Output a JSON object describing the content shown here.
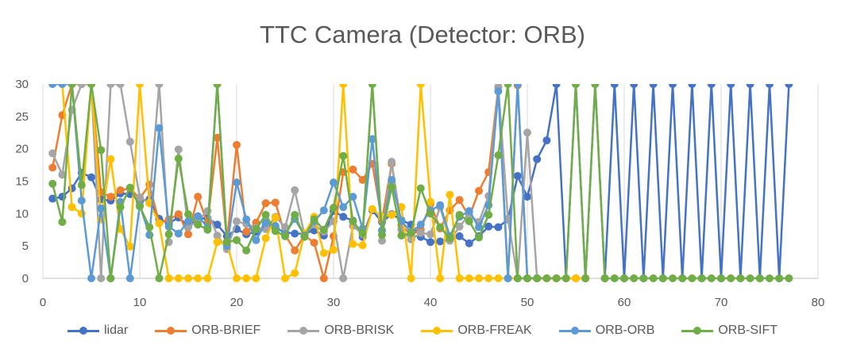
{
  "chart_data": {
    "type": "line",
    "title": "TTC Camera (Detector: ORB)",
    "xlabel": "",
    "ylabel": "",
    "xlim": [
      0,
      80
    ],
    "ylim": [
      0,
      30
    ],
    "xticks": [
      0,
      10,
      20,
      30,
      40,
      50,
      60,
      70,
      80
    ],
    "yticks": [
      0,
      5,
      10,
      15,
      20,
      25,
      30
    ],
    "grid": "vertical gridlines",
    "legend": "bottom",
    "series": [
      {
        "name": "lidar",
        "color": "#4472C4",
        "x": [
          1,
          2,
          3,
          4,
          5,
          6,
          7,
          8,
          9,
          10,
          11,
          12,
          13,
          14,
          15,
          16,
          17,
          18,
          19,
          20,
          21,
          22,
          23,
          24,
          25,
          26,
          27,
          28,
          29,
          30,
          31,
          32,
          33,
          34,
          35,
          36,
          37,
          38,
          39,
          40,
          41,
          42,
          43,
          44,
          45,
          46,
          47,
          48,
          49,
          50,
          51,
          52,
          53,
          54,
          55,
          56,
          57,
          58,
          59,
          60,
          61,
          62,
          63,
          64,
          65,
          66,
          67,
          68,
          69,
          70,
          71,
          72,
          73,
          74,
          75,
          76,
          77
        ],
        "y": [
          12.3,
          12.6,
          13.9,
          16.3,
          15.6,
          12.2,
          12,
          13.1,
          13,
          11.9,
          12.2,
          9.2,
          8.5,
          9.4,
          8.1,
          9.2,
          9.3,
          8.3,
          6.5,
          7.6,
          6.8,
          7.2,
          8.2,
          7.8,
          7.1,
          6.9,
          6.9,
          7.4,
          6.6,
          10.4,
          9.5,
          8.9,
          6.4,
          10.5,
          8.7,
          9.9,
          9,
          8.3,
          6.4,
          5.6,
          5.7,
          5.9,
          6.5,
          5.4,
          6.5,
          8,
          7.9,
          9.1,
          15.8,
          12.6,
          18.4,
          21.3,
          30,
          0,
          30,
          0,
          30,
          0,
          30,
          0,
          30,
          0,
          30,
          0,
          30,
          0,
          30,
          0,
          30,
          0,
          30,
          0,
          30,
          0,
          30,
          0,
          30
        ]
      },
      {
        "name": "ORB-BRIEF",
        "color": "#ED7D31",
        "x": [
          1,
          2,
          3,
          4,
          5,
          6,
          7,
          8,
          9,
          10,
          11,
          12,
          13,
          14,
          15,
          16,
          17,
          18,
          19,
          20,
          21,
          22,
          23,
          24,
          25,
          26,
          27,
          28,
          29,
          30,
          31,
          32,
          33,
          34,
          35,
          36,
          37,
          38,
          39,
          40,
          41,
          42,
          43,
          44,
          45,
          46,
          47,
          48,
          49,
          50,
          51,
          52,
          53,
          54,
          55,
          56
        ],
        "y": [
          17.1,
          25.2,
          30,
          30,
          30,
          13.3,
          12.6,
          13.6,
          13.9,
          12.3,
          14.5,
          8.5,
          9.1,
          9.9,
          6.8,
          12.6,
          8.5,
          21.7,
          5.7,
          20.6,
          7.2,
          8.6,
          11.6,
          11.7,
          6.7,
          4.3,
          6.6,
          5.5,
          0,
          6.5,
          16.4,
          16.8,
          15.2,
          17.7,
          8.9,
          17.7,
          8.2,
          6.7,
          7.5,
          11.5,
          7.7,
          10.5,
          12.1,
          9.5,
          13.5,
          16.4,
          29.5,
          0,
          29.8,
          0,
          0,
          0,
          0,
          0,
          0,
          0
        ]
      },
      {
        "name": "ORB-BRISK",
        "color": "#A5A5A5",
        "x": [
          1,
          2,
          3,
          4,
          5,
          6,
          7,
          8,
          9,
          10,
          11,
          12,
          13,
          14,
          15,
          16,
          17,
          18,
          19,
          20,
          21,
          22,
          23,
          24,
          25,
          26,
          27,
          28,
          29,
          30,
          31,
          32,
          33,
          34,
          35,
          36,
          37,
          38,
          39,
          40,
          41,
          42,
          43,
          44,
          45,
          46,
          47,
          48,
          49,
          50,
          51
        ],
        "y": [
          19.3,
          16,
          26,
          30,
          30,
          0,
          30,
          30,
          21.1,
          12.5,
          11.7,
          30,
          5.6,
          19.9,
          7.9,
          8.9,
          10.4,
          6.6,
          4.5,
          8.8,
          8.4,
          7.8,
          7.6,
          9.5,
          7.9,
          13.6,
          6.7,
          8.3,
          7.2,
          8.8,
          0,
          8.1,
          6.8,
          30,
          5.8,
          18,
          7.5,
          6,
          7,
          6.8,
          11,
          5.8,
          8,
          9.8,
          8.7,
          12.7,
          29.6,
          9.2,
          0,
          22.5,
          0
        ]
      },
      {
        "name": "ORB-FREAK",
        "color": "#FFC000",
        "x": [
          1,
          2,
          3,
          4,
          5,
          6,
          7,
          8,
          9,
          10,
          11,
          12,
          13,
          14,
          15,
          16,
          17,
          18,
          19,
          20,
          21,
          22,
          23,
          24,
          25,
          26,
          27,
          28,
          29,
          30,
          31,
          32,
          33,
          34,
          35,
          36,
          37,
          38,
          39,
          40,
          41,
          42,
          43,
          44,
          45,
          46,
          47,
          48,
          49,
          50,
          51,
          52,
          53,
          54,
          55,
          56
        ],
        "y": [
          30,
          30,
          11,
          10,
          30,
          9.1,
          18.4,
          7.6,
          4.9,
          30,
          11.6,
          8.5,
          0,
          0,
          0,
          0,
          0,
          5.6,
          5.3,
          0,
          0,
          0,
          6.2,
          9.4,
          0,
          0.8,
          6.9,
          9.5,
          3.9,
          4.4,
          30,
          5.3,
          5.1,
          10.7,
          9.5,
          9.8,
          11,
          0,
          30,
          11.8,
          0,
          12.9,
          0,
          0,
          0,
          0,
          0,
          0,
          0,
          0,
          0,
          0,
          0,
          0,
          0,
          0
        ]
      },
      {
        "name": "ORB-ORB",
        "color": "#5B9BD5",
        "x": [
          1,
          2,
          3,
          4,
          5,
          6,
          7,
          8,
          9,
          10,
          11,
          12,
          13,
          14,
          15,
          16,
          17,
          18,
          19,
          20,
          21,
          22,
          23,
          24,
          25,
          26,
          27,
          28,
          29,
          30,
          31,
          32,
          33,
          34,
          35,
          36,
          37,
          38,
          39,
          40,
          41,
          42,
          43,
          44,
          45,
          46,
          47,
          48,
          49,
          50,
          51
        ],
        "y": [
          30,
          30,
          30,
          12,
          0,
          10.8,
          0,
          11.8,
          0,
          11.3,
          6.7,
          23.2,
          8,
          6.9,
          8.8,
          9.6,
          7.9,
          30,
          5,
          14.8,
          9.1,
          5.9,
          8.6,
          8.1,
          6.8,
          9.2,
          6.6,
          8.8,
          10.5,
          14.8,
          11,
          12.6,
          7.7,
          21.5,
          7.4,
          15.2,
          8.9,
          7.1,
          8.3,
          10.5,
          11.3,
          6.5,
          9.5,
          10.4,
          7.9,
          11.3,
          28.9,
          0,
          30,
          0,
          0
        ]
      },
      {
        "name": "ORB-SIFT",
        "color": "#70AD47",
        "x": [
          1,
          2,
          3,
          4,
          5,
          6,
          7,
          8,
          9,
          10,
          11,
          12,
          13,
          14,
          15,
          16,
          17,
          18,
          19,
          20,
          21,
          22,
          23,
          24,
          25,
          26,
          27,
          28,
          29,
          30,
          31,
          32,
          33,
          34,
          35,
          36,
          37,
          38,
          39,
          40,
          41,
          42,
          43,
          44,
          45,
          46,
          47,
          48,
          49,
          50,
          51,
          52,
          53,
          54,
          55,
          56,
          57,
          58,
          59,
          60,
          61,
          62,
          63,
          64,
          65,
          66,
          67,
          68,
          69,
          70,
          71,
          72,
          73,
          74,
          75,
          76,
          77
        ],
        "y": [
          14.6,
          8.7,
          30,
          14.4,
          30,
          19.8,
          0,
          11,
          14,
          11.1,
          7.9,
          0,
          6.8,
          18.5,
          9.9,
          8.3,
          7.5,
          30,
          5.6,
          5.9,
          4.3,
          7.6,
          9.8,
          7.3,
          6.5,
          9.8,
          6.4,
          9.1,
          7.5,
          10.9,
          18.9,
          8.8,
          6.9,
          30,
          6.7,
          14.1,
          6.6,
          7,
          13.9,
          10,
          7.9,
          6.2,
          9.8,
          8.8,
          6.3,
          9.8,
          19,
          30,
          0,
          0,
          0,
          0,
          0,
          0,
          30,
          0,
          30,
          0,
          0,
          0,
          0,
          0,
          0,
          0,
          0,
          0,
          0,
          0,
          0,
          0,
          0,
          0,
          0,
          0,
          0,
          0,
          0
        ]
      }
    ]
  }
}
